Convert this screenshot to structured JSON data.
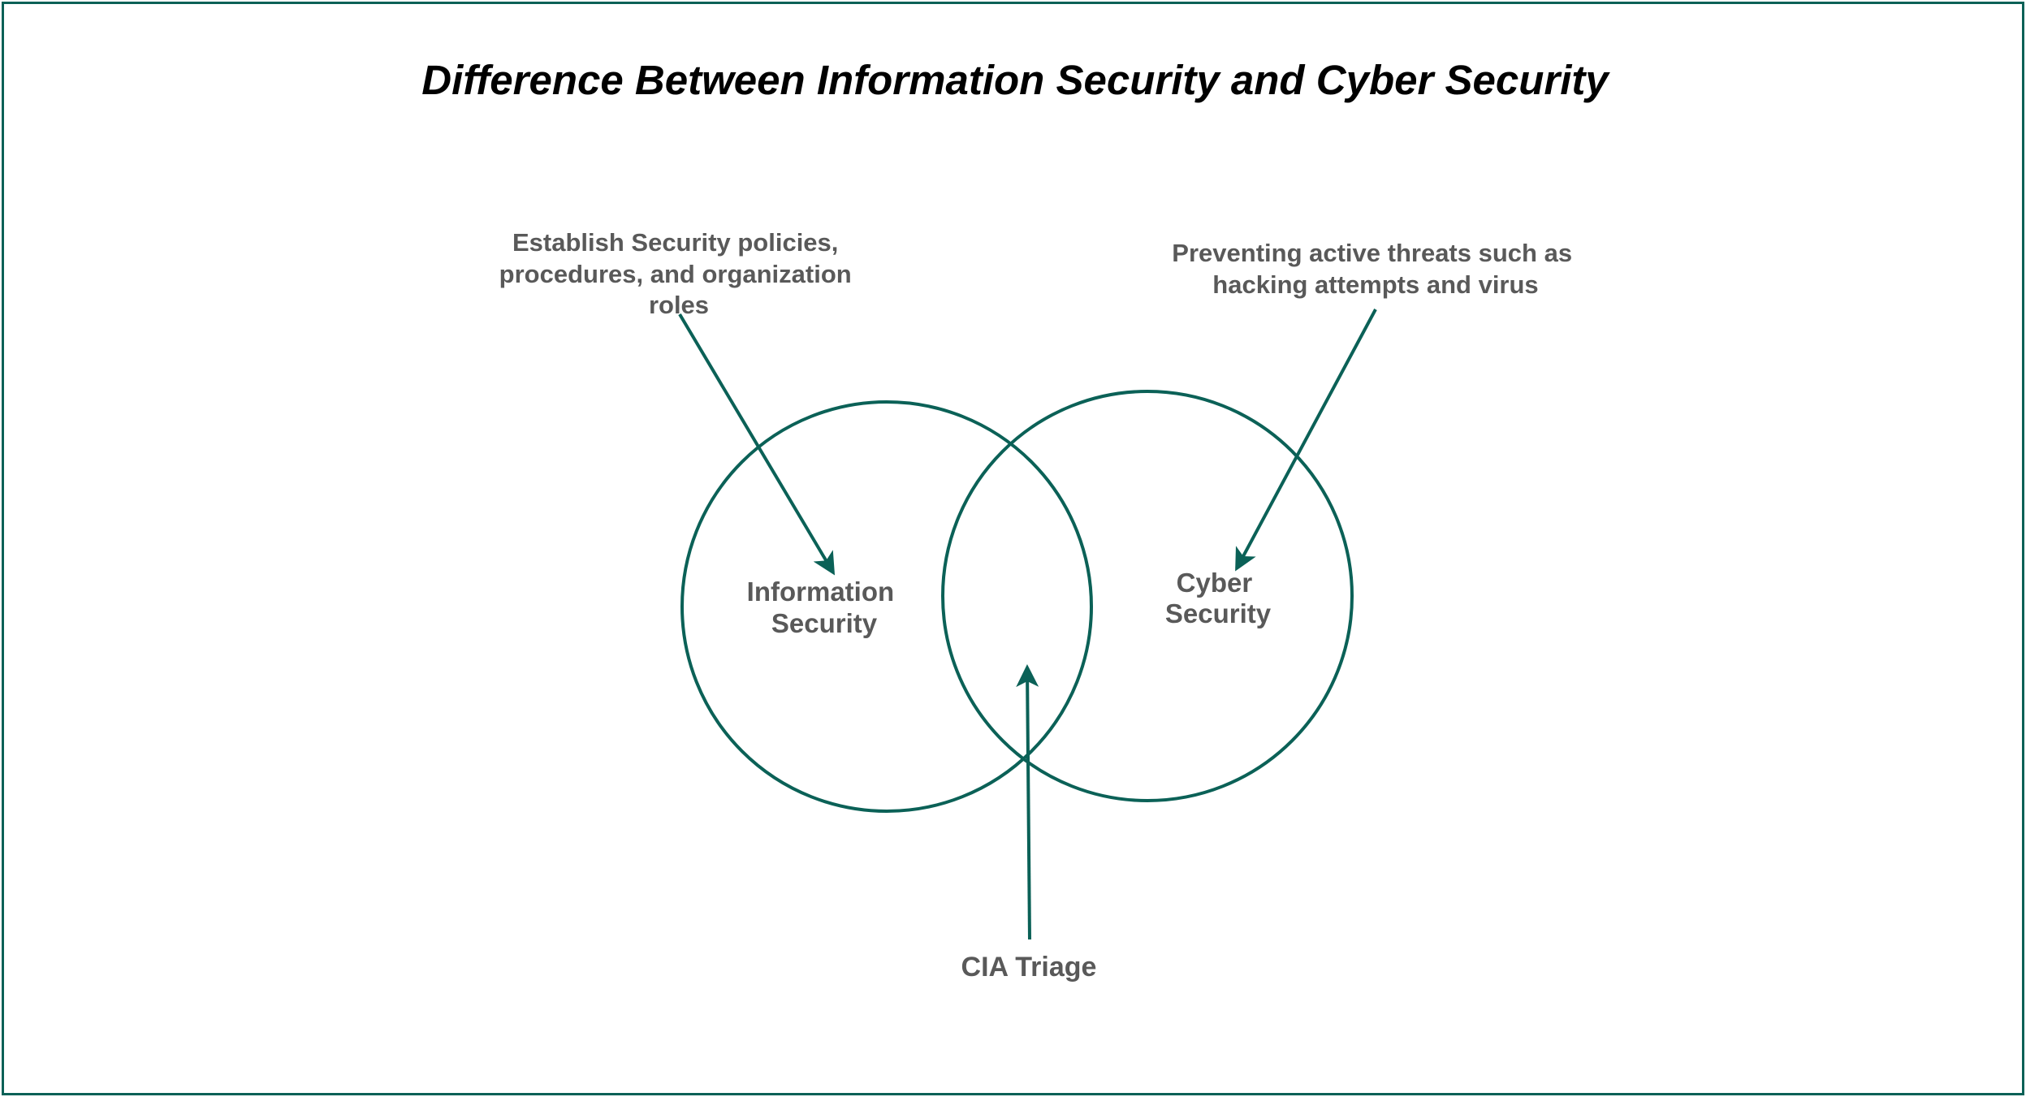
{
  "title": "Difference Between Information Security and Cyber Security",
  "colors": {
    "accent": "#0b6157",
    "label_text": "#595959",
    "title_text": "#000000",
    "background": "#ffffff"
  },
  "circles": {
    "left": {
      "label_lines": [
        "Information",
        "Security"
      ]
    },
    "right": {
      "label_lines": [
        "Cyber",
        "Security"
      ]
    }
  },
  "annotations": {
    "info_security": {
      "lines": [
        "Establish Security policies,",
        "procedures, and organization",
        "roles"
      ]
    },
    "cyber_security": {
      "lines": [
        "Preventing active threats such as",
        "hacking attempts and virus"
      ]
    },
    "overlap": {
      "lines": [
        "CIA Triage"
      ]
    }
  }
}
